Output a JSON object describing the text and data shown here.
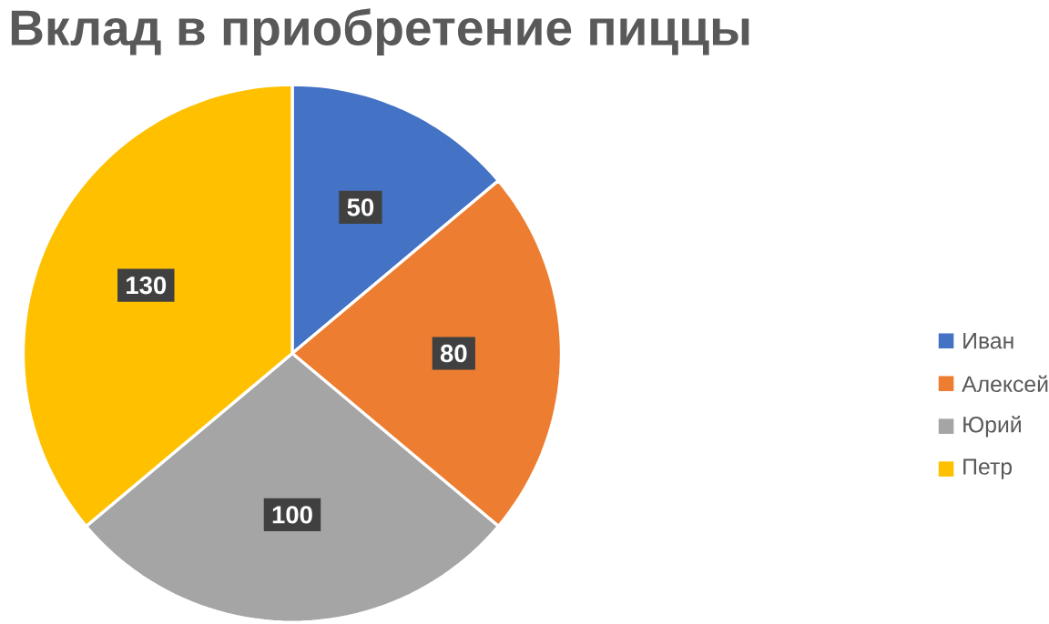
{
  "chart_data": {
    "type": "pie",
    "title": "Вклад в приобретение пиццы",
    "categories": [
      "Иван",
      "Алексей",
      "Юрий",
      "Петр"
    ],
    "values": [
      50,
      80,
      100,
      130
    ],
    "colors": [
      "#4472c4",
      "#ed7d31",
      "#a5a5a5",
      "#ffc000"
    ],
    "data_labels": true,
    "legend": "right"
  }
}
